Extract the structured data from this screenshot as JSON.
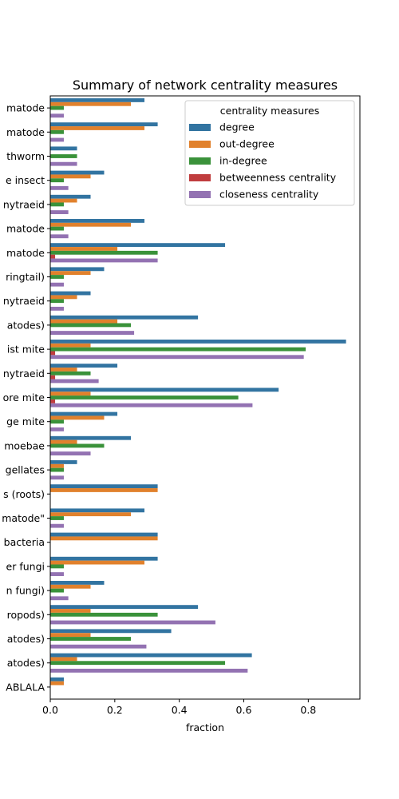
{
  "chart_data": {
    "type": "bar",
    "orientation": "horizontal",
    "title": "Summary of network centrality measures",
    "xlabel": "fraction",
    "ylabel": "",
    "xlim": [
      0,
      0.96
    ],
    "xticks": [
      0.0,
      0.2,
      0.4,
      0.6,
      0.8
    ],
    "xtick_labels": [
      "0.0",
      "0.2",
      "0.4",
      "0.6",
      "0.8"
    ],
    "grid": false,
    "legend": {
      "title": "centrality measures",
      "placement": "top-right"
    },
    "categories": [
      "matode",
      "matode",
      "thworm",
      "e insect",
      "nytraeid",
      "matode",
      "matode",
      "ringtail)",
      "nytraeid",
      "atodes)",
      "ist mite",
      "nytraeid",
      "ore mite",
      "ge mite",
      "moebae",
      "gellates",
      "s (roots)",
      "matode\"",
      "bacteria",
      "er fungi",
      "n fungi)",
      "ropods)",
      "atodes)",
      "atodes)",
      "ABLALA"
    ],
    "series": [
      {
        "name": "degree",
        "color": "#3274a1",
        "values": [
          0.292,
          0.333,
          0.083,
          0.167,
          0.125,
          0.292,
          0.542,
          0.167,
          0.125,
          0.458,
          0.917,
          0.208,
          0.708,
          0.208,
          0.25,
          0.083,
          0.333,
          0.292,
          0.333,
          0.333,
          0.167,
          0.458,
          0.375,
          0.625,
          0.042
        ]
      },
      {
        "name": "out-degree",
        "color": "#e1812c",
        "values": [
          0.25,
          0.292,
          0.0,
          0.125,
          0.083,
          0.25,
          0.208,
          0.125,
          0.083,
          0.208,
          0.125,
          0.083,
          0.125,
          0.167,
          0.083,
          0.042,
          0.333,
          0.25,
          0.333,
          0.292,
          0.125,
          0.125,
          0.125,
          0.083,
          0.042
        ]
      },
      {
        "name": "in-degree",
        "color": "#3a923a",
        "values": [
          0.042,
          0.042,
          0.083,
          0.042,
          0.042,
          0.042,
          0.333,
          0.042,
          0.042,
          0.25,
          0.792,
          0.125,
          0.583,
          0.042,
          0.167,
          0.042,
          0.0,
          0.042,
          0.0,
          0.042,
          0.042,
          0.333,
          0.25,
          0.542,
          0.0
        ]
      },
      {
        "name": "betweenness centrality",
        "color": "#c03d3e",
        "values": [
          0.0,
          0.0,
          0.0,
          0.0,
          0.0,
          0.0,
          0.015,
          0.0,
          0.0,
          0.0,
          0.015,
          0.015,
          0.015,
          0.0,
          0.0,
          0.0,
          0.0,
          0.0,
          0.0,
          0.0,
          0.0,
          0.0,
          0.0,
          0.0,
          0.0
        ]
      },
      {
        "name": "closeness centrality",
        "color": "#9372b2",
        "values": [
          0.042,
          0.042,
          0.083,
          0.056,
          0.056,
          0.056,
          0.333,
          0.042,
          0.042,
          0.26,
          0.786,
          0.15,
          0.627,
          0.042,
          0.125,
          0.042,
          0.0,
          0.042,
          0.0,
          0.042,
          0.056,
          0.512,
          0.298,
          0.612,
          0.0
        ]
      }
    ]
  }
}
